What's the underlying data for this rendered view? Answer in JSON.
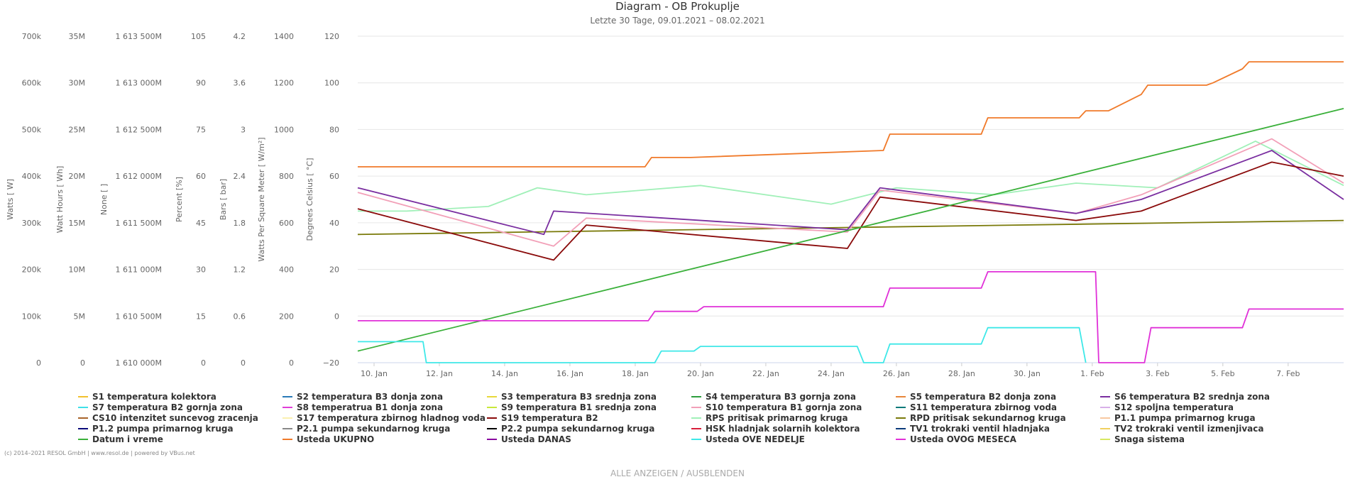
{
  "chart_data": {
    "type": "line",
    "title": "Diagram - OB Prokuplje",
    "subtitle": "Letzte 30 Tage, 09.01.2021 – 08.02.2021",
    "x_tick_labels": [
      "10. Jan",
      "12. Jan",
      "14. Jan",
      "16. Jan",
      "18. Jan",
      "20. Jan",
      "22. Jan",
      "24. Jan",
      "26. Jan",
      "28. Jan",
      "30. Jan",
      "1. Feb",
      "3. Feb",
      "5. Feb",
      "7. Feb"
    ],
    "x_range_days": [
      9.5,
      39.7
    ],
    "grid": true,
    "y_axes": [
      {
        "title": "Watts [ W]",
        "ticks": [
          "0",
          "100k",
          "200k",
          "300k",
          "400k",
          "500k",
          "600k",
          "700k"
        ]
      },
      {
        "title": "Watt Hours [ Wh]",
        "ticks": [
          "0",
          "5M",
          "10M",
          "15M",
          "20M",
          "25M",
          "30M",
          "35M"
        ]
      },
      {
        "title": "None [ ]",
        "ticks": [
          "1 610 000M",
          "1 610 500M",
          "1 611 000M",
          "1 611 500M",
          "1 612 000M",
          "1 612 500M",
          "1 613 000M",
          "1 613 500M"
        ]
      },
      {
        "title": "Percent [%]",
        "ticks": [
          "0",
          "15",
          "30",
          "45",
          "60",
          "75",
          "90",
          "105"
        ]
      },
      {
        "title": "Bars [ bar]",
        "ticks": [
          "0",
          "0.6",
          "1.2",
          "1.8",
          "2.4",
          "3",
          "3.6",
          "4.2"
        ]
      },
      {
        "title": "Watts Per Square Meter [ W/m²]",
        "ticks": [
          "0",
          "200",
          "400",
          "600",
          "800",
          "1000",
          "1200",
          "1400"
        ]
      },
      {
        "title": "Degrees Celsius [ °C]",
        "ticks": [
          "−20",
          "0",
          "20",
          "40",
          "60",
          "80",
          "100",
          "120"
        ]
      }
    ],
    "y_celsius_range": [
      -20,
      120
    ],
    "legend_position": "bottom",
    "series": [
      {
        "name": "S1 temperatura kolektora",
        "color": "#f2c12e"
      },
      {
        "name": "S2 temperatura B3 donja zona",
        "color": "#2a7ab8"
      },
      {
        "name": "S3 temperatura B3 srednja zona",
        "color": "#e8d83a"
      },
      {
        "name": "S4 temperatura B3 gornja zona",
        "color": "#2e9e3e"
      },
      {
        "name": "S5 temperatura B2 donja zona",
        "color": "#e8863a"
      },
      {
        "name": "S6 temperatura B2 srednja zona",
        "color": "#7a2ea0"
      },
      {
        "name": "S7 temperatura B2 gornja zona",
        "color": "#3ee0e8"
      },
      {
        "name": "S8 temperatrua B1 donja zona",
        "color": "#e03ed8"
      },
      {
        "name": "S9 temperatura B1 srednja zona",
        "color": "#c8e83a"
      },
      {
        "name": "S10 temperatura B1 gornja zona",
        "color": "#f2a0b8"
      },
      {
        "name": "S11 temperatura zbirnog voda",
        "color": "#0a7a7a"
      },
      {
        "name": "S12 spoljna temperatura",
        "color": "#d8b0e8"
      },
      {
        "name": "CS10 intenzitet suncevog zracenja",
        "color": "#a8642a"
      },
      {
        "name": "S17 temperatura zbirnog hladnog voda",
        "color": "#faf0b0"
      },
      {
        "name": "S19 temperatura B2",
        "color": "#8a0a0a"
      },
      {
        "name": "RPS pritisak primarnog kruga",
        "color": "#a0f0b8"
      },
      {
        "name": "RPD pritisak sekundarnog kruga",
        "color": "#7a7a0a"
      },
      {
        "name": "P1.1 pumpa primarnog kruga",
        "color": "#f8c8a0"
      },
      {
        "name": "P1.2 pumpa primarnog kruga",
        "color": "#0a0a7a"
      },
      {
        "name": "P2.1 pumpa sekundarnog kruga",
        "color": "#888888"
      },
      {
        "name": "P2.2 pumpa sekundarnog kruga",
        "color": "#000000"
      },
      {
        "name": "HSK hladnjak solarnih kolektora",
        "color": "#d81e3a"
      },
      {
        "name": "TV1 trokraki ventil hladnjaka",
        "color": "#0a3a7a"
      },
      {
        "name": "TV2 trokraki ventil izmenjivaca",
        "color": "#f0d060"
      },
      {
        "name": "Datum i vreme",
        "color": "#3ab03a"
      },
      {
        "name": "Usteda UKUPNO",
        "color": "#f07a2a"
      },
      {
        "name": "Usteda DANAS",
        "color": "#8a0aa0"
      },
      {
        "name": "Usteda OVE NEDELJE",
        "color": "#3ee8e8"
      },
      {
        "name": "Usteda OVOG MESECA",
        "color": "#e030d8"
      },
      {
        "name": "Snaga sistema",
        "color": "#d8e860"
      }
    ],
    "trend_points": {
      "Usteda UKUPNO": {
        "x": [
          9.5,
          18.3,
          18.5,
          19.7,
          25.6,
          25.8,
          28.6,
          28.8,
          31.6,
          31.8,
          32.5,
          33.5,
          33.7,
          35.5,
          35.7,
          36.6,
          36.8,
          39.7
        ],
        "y": [
          64,
          64,
          68,
          68,
          71,
          78,
          78,
          85,
          85,
          88,
          88,
          95,
          99,
          99,
          100,
          106,
          109,
          109
        ]
      },
      "Usteda OVOG MESECA": {
        "x": [
          9.5,
          18.4,
          18.6,
          19.9,
          20.1,
          25.6,
          25.8,
          28.6,
          28.8,
          32.1,
          32.2,
          33.6,
          33.8,
          36.6,
          36.8,
          39.7
        ],
        "y": [
          -2,
          -2,
          2,
          2,
          4,
          4,
          12,
          12,
          19,
          19,
          -20,
          -20,
          -5,
          -5,
          3,
          3
        ]
      },
      "Usteda OVE NEDELJE": {
        "x": [
          9.5,
          11.5,
          11.6,
          18.6,
          18.8,
          19.8,
          20.0,
          24.8,
          25.0,
          25.6,
          25.8,
          28.6,
          28.8,
          31.6,
          31.8
        ],
        "y": [
          -11,
          -11,
          -20,
          -20,
          -15,
          -15,
          -13,
          -13,
          -20,
          -20,
          -12,
          -12,
          -5,
          -5,
          -20
        ]
      },
      "Datum i vreme": {
        "x": [
          9.5,
          39.7
        ],
        "y": [
          -15,
          89
        ]
      },
      "S6 temperatura B2 srednja zona": {
        "x": [
          9.5,
          15.2,
          15.5,
          24.5,
          25.5,
          31.5,
          33.5,
          37.5,
          39.7
        ],
        "y": [
          55,
          35,
          45,
          37,
          55,
          44,
          50,
          71,
          50
        ]
      },
      "S10 temperatura B1 gornja zona": {
        "x": [
          9.5,
          15.5,
          16.5,
          24.5,
          25.5,
          31.5,
          33.5,
          37.5,
          39.7
        ],
        "y": [
          53,
          30,
          42,
          36,
          54,
          44,
          52,
          76,
          57
        ]
      },
      "S19 temperatura B2": {
        "x": [
          9.5,
          15.5,
          16.5,
          24.5,
          25.5,
          31.5,
          33.5,
          37.5,
          39.7
        ],
        "y": [
          46,
          24,
          39,
          29,
          51,
          41,
          45,
          66,
          60
        ]
      },
      "RPD pritisak sekundarnog kruga": {
        "x": [
          9.5,
          39.7
        ],
        "y": [
          35,
          41
        ]
      },
      "RPS pritisak primarnog kruga": {
        "x": [
          9.5,
          11.0,
          13.5,
          15.0,
          16.5,
          20.0,
          24.0,
          26.0,
          29.0,
          31.5,
          34.0,
          37.0,
          39.7
        ],
        "y": [
          45,
          45,
          47,
          55,
          52,
          56,
          48,
          55,
          52,
          57,
          55,
          75,
          56
        ]
      }
    }
  },
  "legend_items": [
    "S1 temperatura kolektora",
    "S2 temperatura B3 donja zona",
    "S3 temperatura B3 srednja zona",
    "S4 temperatura B3 gornja zona",
    "S5 temperatura B2 donja zona",
    "S6 temperatura B2 srednja zona",
    "S7 temperatura B2 gornja zona",
    "S8 temperatrua B1 donja zona",
    "S9 temperatura B1 srednja zona",
    "S10 temperatura B1 gornja zona",
    "S11 temperatura zbirnog voda",
    "S12 spoljna temperatura",
    "CS10 intenzitet suncevog zracenja",
    "S17 temperatura zbirnog hladnog voda",
    "S19 temperatura B2",
    "RPS pritisak primarnog kruga",
    "RPD pritisak sekundarnog kruga",
    "P1.1 pumpa primarnog kruga",
    "P1.2 pumpa primarnog kruga",
    "P2.1 pumpa sekundarnog kruga",
    "P2.2 pumpa sekundarnog kruga",
    "HSK hladnjak solarnih kolektora",
    "TV1 trokraki ventil hladnjaka",
    "TV2 trokraki ventil izmenjivaca",
    "Datum i vreme",
    "Usteda UKUPNO",
    "Usteda DANAS",
    "Usteda OVE NEDELJE",
    "Usteda OVOG MESECA",
    "Snaga sistema"
  ],
  "footer": {
    "copyright": "(c) 2014–2021 RESOL GmbH | www.resol.de | powered by VBus.net",
    "show_hide": "ALLE ANZEIGEN / AUSBLENDEN"
  }
}
